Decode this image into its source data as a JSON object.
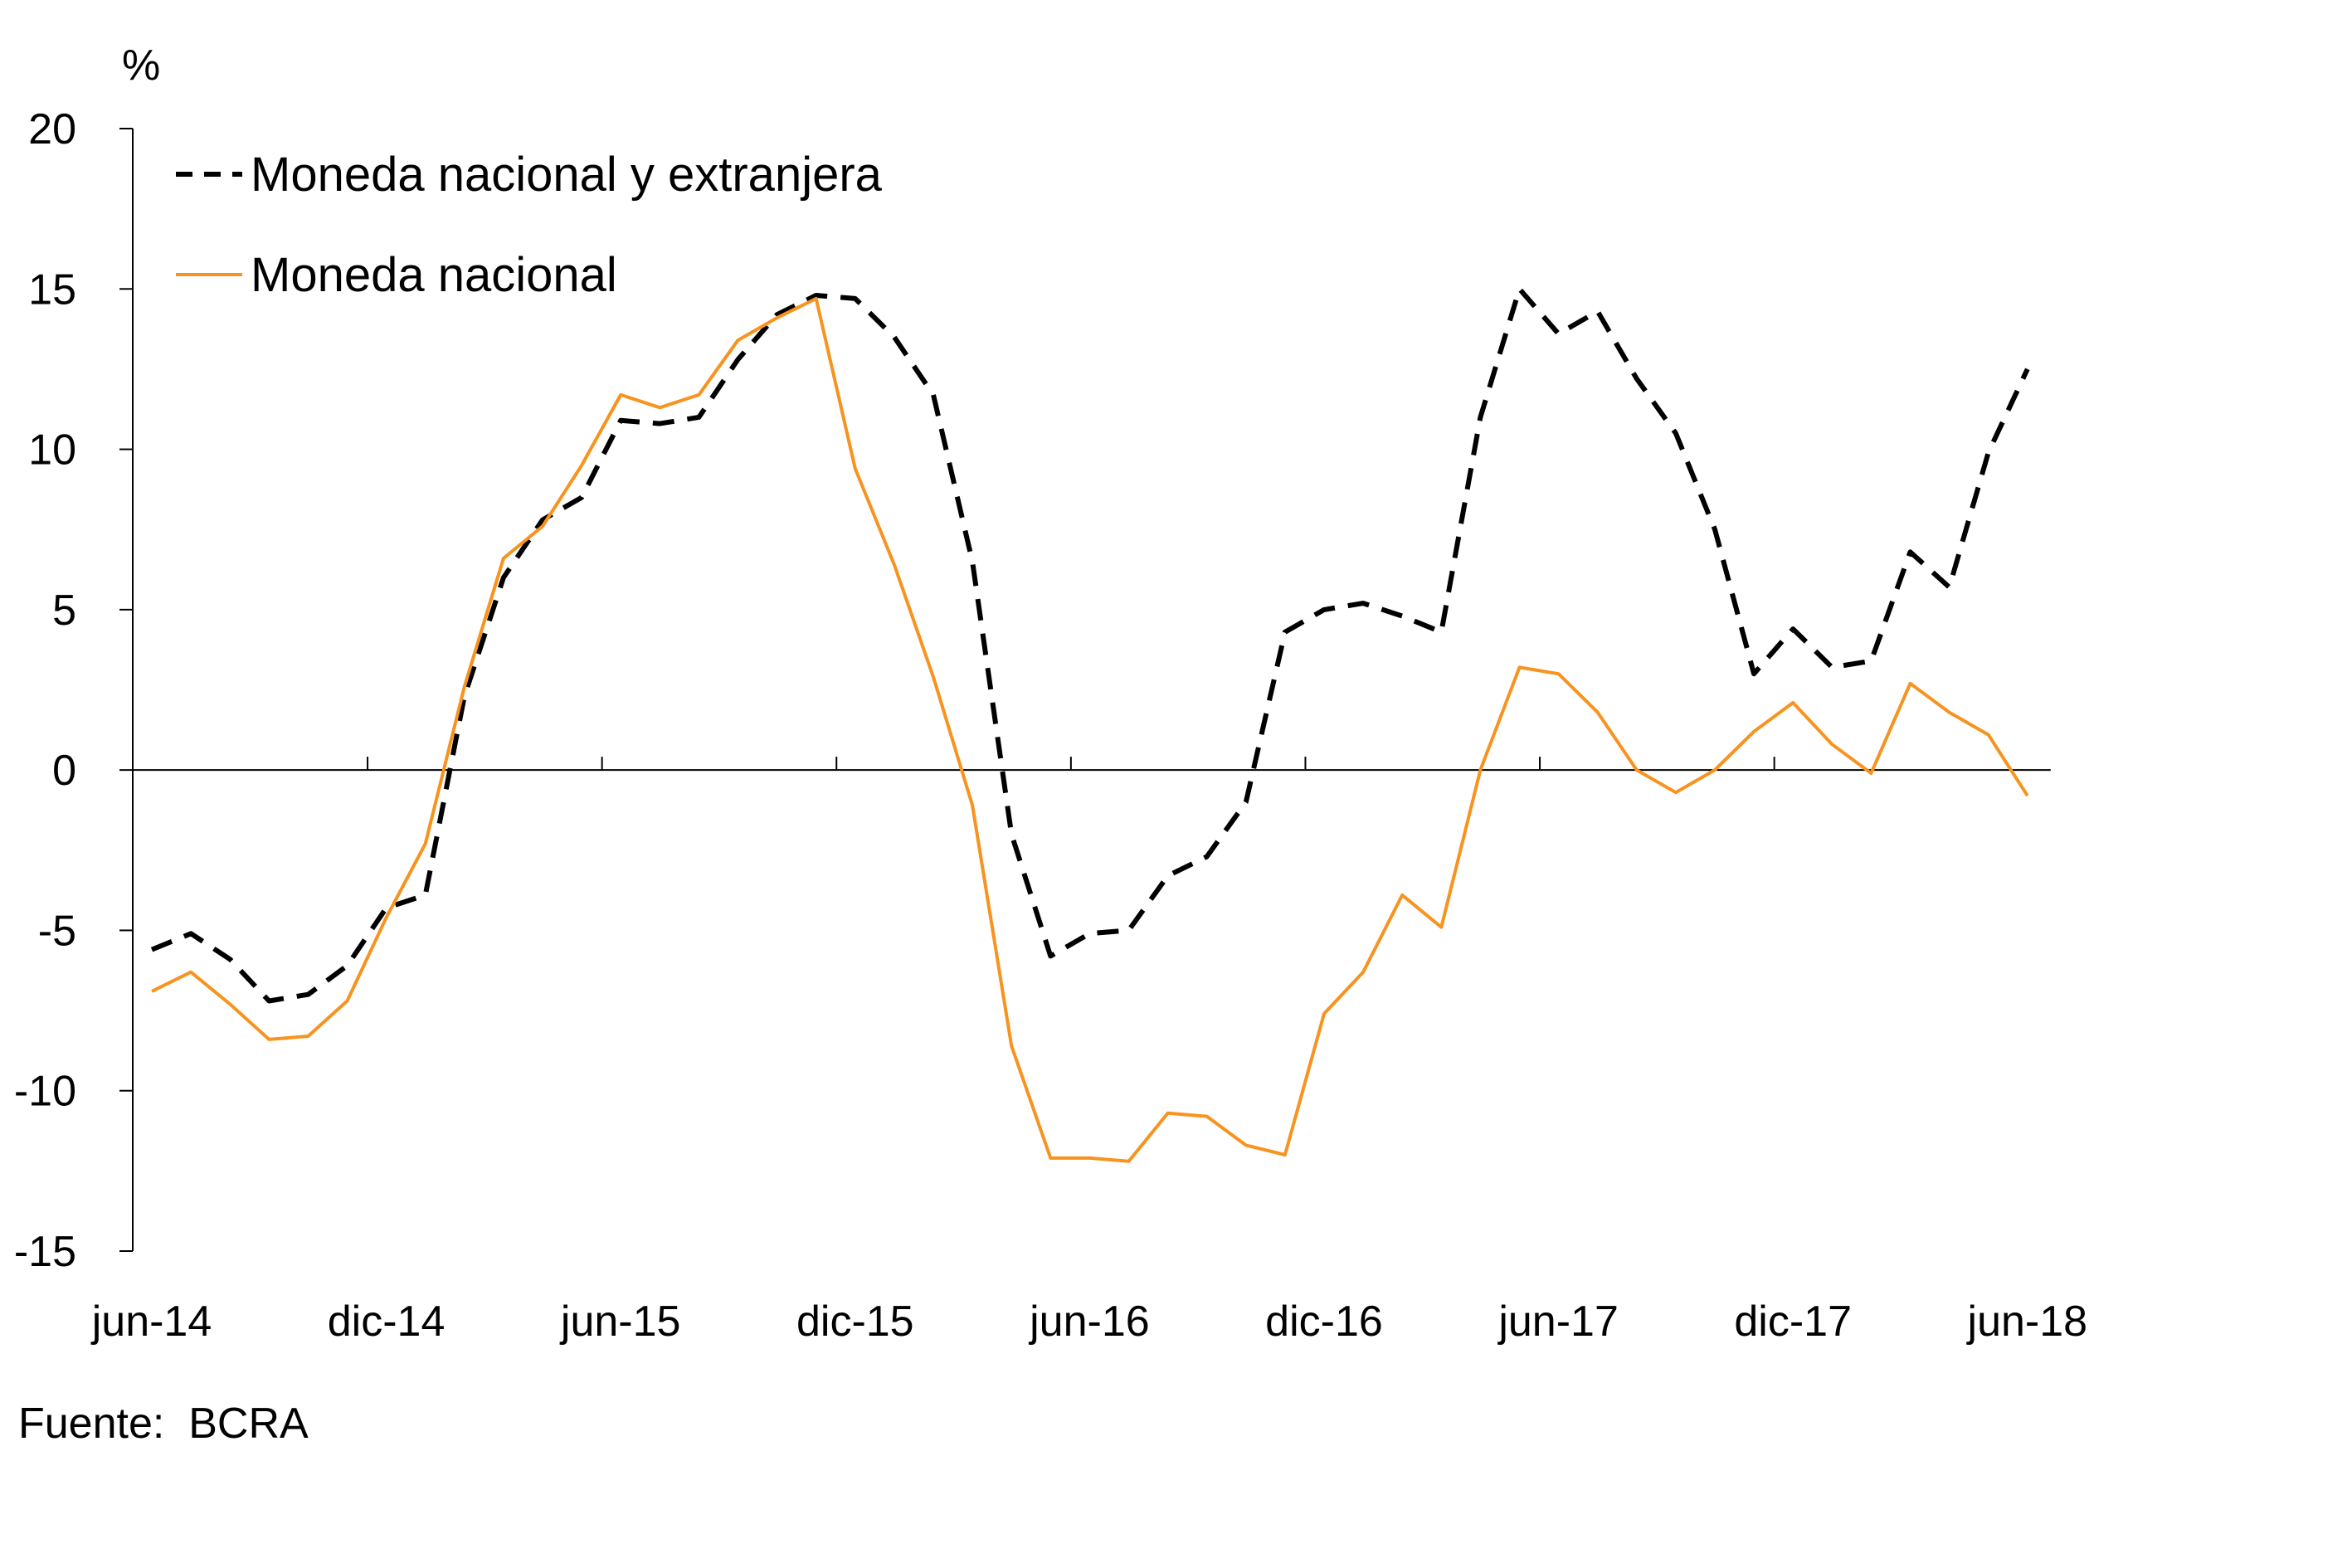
{
  "chart_data": {
    "type": "line",
    "title": "",
    "ylabel": "%",
    "xlabel": "",
    "ylim": [
      -15,
      20
    ],
    "yticks": [
      20,
      15,
      10,
      5,
      0,
      -5,
      -10,
      -15
    ],
    "ytick_labels": [
      "20",
      "15",
      "10",
      "5",
      "0",
      "-5",
      "-10",
      "-15"
    ],
    "xtick_labels": [
      "jun-14",
      "dic-14",
      "jun-15",
      "dic-15",
      "jun-16",
      "dic-16",
      "jun-17",
      "dic-17",
      "jun-18"
    ],
    "x": [
      "2014-06",
      "2014-07",
      "2014-08",
      "2014-09",
      "2014-10",
      "2014-11",
      "2014-12",
      "2015-01",
      "2015-02",
      "2015-03",
      "2015-04",
      "2015-05",
      "2015-06",
      "2015-07",
      "2015-08",
      "2015-09",
      "2015-10",
      "2015-11",
      "2015-12",
      "2016-01",
      "2016-02",
      "2016-03",
      "2016-04",
      "2016-05",
      "2016-06",
      "2016-07",
      "2016-08",
      "2016-09",
      "2016-10",
      "2016-11",
      "2016-12",
      "2017-01",
      "2017-02",
      "2017-03",
      "2017-04",
      "2017-05",
      "2017-06",
      "2017-07",
      "2017-08",
      "2017-09",
      "2017-10",
      "2017-11",
      "2017-12",
      "2018-01",
      "2018-02",
      "2018-03",
      "2018-04",
      "2018-05",
      "2018-06"
    ],
    "legend_position": "top-left",
    "grid": false,
    "series": [
      {
        "name": "Moneda nacional y extranjera",
        "style": "dashed",
        "color": "#000000",
        "values": [
          -5.6,
          -5.1,
          -5.9,
          -7.2,
          -7.0,
          -6.1,
          -4.3,
          -3.9,
          2.3,
          6.0,
          7.8,
          8.5,
          10.9,
          10.8,
          11.0,
          12.8,
          14.2,
          14.8,
          14.7,
          13.5,
          11.7,
          6.5,
          -2.0,
          -5.8,
          -5.1,
          -5.0,
          -3.3,
          -2.7,
          -1.0,
          4.3,
          5.0,
          5.2,
          4.8,
          4.3,
          11.0,
          15.0,
          13.6,
          14.3,
          12.2,
          10.5,
          7.5,
          3.0,
          4.4,
          3.2,
          3.4,
          6.8,
          5.7,
          9.9,
          12.5
        ]
      },
      {
        "name": "Moneda nacional",
        "style": "solid",
        "color": "#F7931E",
        "values": [
          -6.9,
          -6.3,
          -7.3,
          -8.4,
          -8.3,
          -7.2,
          -4.6,
          -2.3,
          2.6,
          6.6,
          7.6,
          9.5,
          11.7,
          11.3,
          11.7,
          13.4,
          14.1,
          14.7,
          9.4,
          6.4,
          2.9,
          -1.1,
          -8.6,
          -12.1,
          -12.1,
          -12.2,
          -10.7,
          -10.8,
          -11.7,
          -12.0,
          -7.6,
          -6.3,
          -3.9,
          -4.9,
          0.0,
          3.2,
          3.0,
          1.8,
          0.0,
          -0.7,
          0.0,
          1.2,
          2.1,
          0.8,
          -0.1,
          2.7,
          1.8,
          1.1,
          -0.8
        ]
      }
    ],
    "source": "Fuente:  BCRA"
  }
}
